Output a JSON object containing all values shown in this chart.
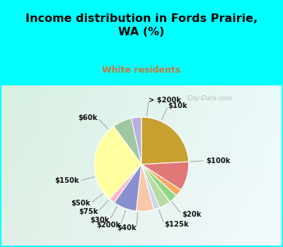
{
  "title": "Income distribution in Fords Prairie,\nWA (%)",
  "subtitle": "White residents",
  "title_color": "#000000",
  "subtitle_color": "#c8783c",
  "background_outer": "#00ffff",
  "background_chart_tl": "#d8f0e8",
  "background_chart_br": "#e8f8f8",
  "labels": [
    "> $200k",
    "$10k",
    "$100k",
    "$20k",
    "$125k",
    "$40k",
    "$200k",
    "$30k",
    "$75k",
    "$50k",
    "$150k",
    "$60k"
  ],
  "values": [
    3.5,
    6.5,
    28,
    2,
    8,
    6,
    2,
    4,
    3,
    2.5,
    10,
    24
  ],
  "colors": [
    "#b8b0dc",
    "#a0c8a0",
    "#ffffa0",
    "#ffb8c8",
    "#8890d0",
    "#f8c8a8",
    "#c8d8ec",
    "#b8dca0",
    "#90d888",
    "#f8a860",
    "#e07878",
    "#c8a030"
  ],
  "start_angle": 90,
  "wedge_edge_color": "white",
  "wedge_linewidth": 0.8,
  "label_fontsize": 7.2,
  "label_fontweight": "bold",
  "label_color": "#111111",
  "line_color": "#888888",
  "line_width": 0.7,
  "watermark": "City-Data.com",
  "watermark_color": "#aaaaaa"
}
